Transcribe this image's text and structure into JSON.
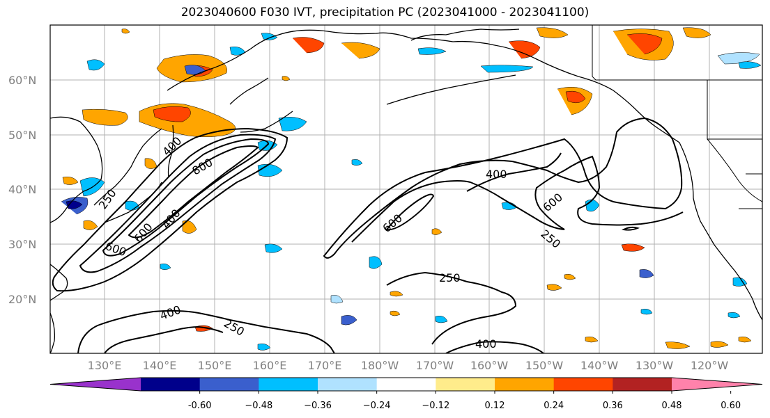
{
  "title": "2023040600 F030 IVT, precipitation PC (2023041000 - 2023041100)",
  "lat_labels": [
    "60°N",
    "50°N",
    "40°N",
    "30°N",
    "20°N"
  ],
  "lon_labels": [
    "130°E",
    "140°E",
    "150°E",
    "160°E",
    "170°E",
    "180°W",
    "170°W",
    "160°W",
    "150°W",
    "140°W",
    "130°W",
    "120°W"
  ],
  "ivt_contour_labels": [
    "250",
    "400",
    "600",
    "800",
    "400",
    "600",
    "250",
    "400",
    "600",
    "600",
    "250",
    "400",
    "250",
    "400"
  ],
  "colorbar": {
    "colors": [
      "#9932cc",
      "#00008b",
      "#3a5fcd",
      "#00bfff",
      "#b0e2ff",
      "#ffffff",
      "#ffec8b",
      "#ffa500",
      "#ff4500",
      "#b22222",
      "#ff82ab"
    ],
    "ticks": [
      "-0.60",
      "−0.48",
      "−0.36",
      "−0.24",
      "−0.12",
      "0.12",
      "0.24",
      "0.36",
      "0.48",
      "0.60"
    ]
  }
}
